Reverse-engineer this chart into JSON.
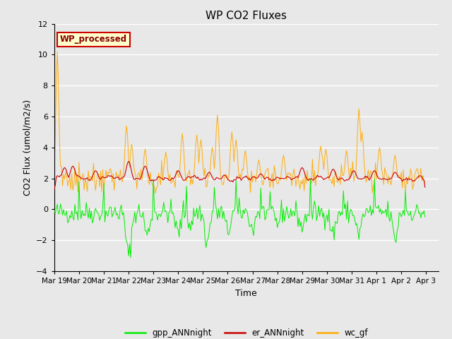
{
  "title": "WP CO2 Fluxes",
  "xlabel": "Time",
  "ylabel": "CO2 Flux (umol/m2/s)",
  "ylim": [
    -4,
    12
  ],
  "yticks": [
    -4,
    -2,
    0,
    2,
    4,
    6,
    8,
    10,
    12
  ],
  "bg_color": "#e8e8e8",
  "plot_bg_color": "#e8e8e8",
  "legend_labels": [
    "gpp_ANNnight",
    "er_ANNnight",
    "wc_gf"
  ],
  "legend_colors": [
    "#00ee00",
    "#cc0000",
    "#ffaa00"
  ],
  "annotation_text": "WP_processed",
  "annotation_bg": "#ffffcc",
  "annotation_border": "#cc0000",
  "annotation_text_color": "#880000",
  "n_points": 360,
  "seed": 42
}
